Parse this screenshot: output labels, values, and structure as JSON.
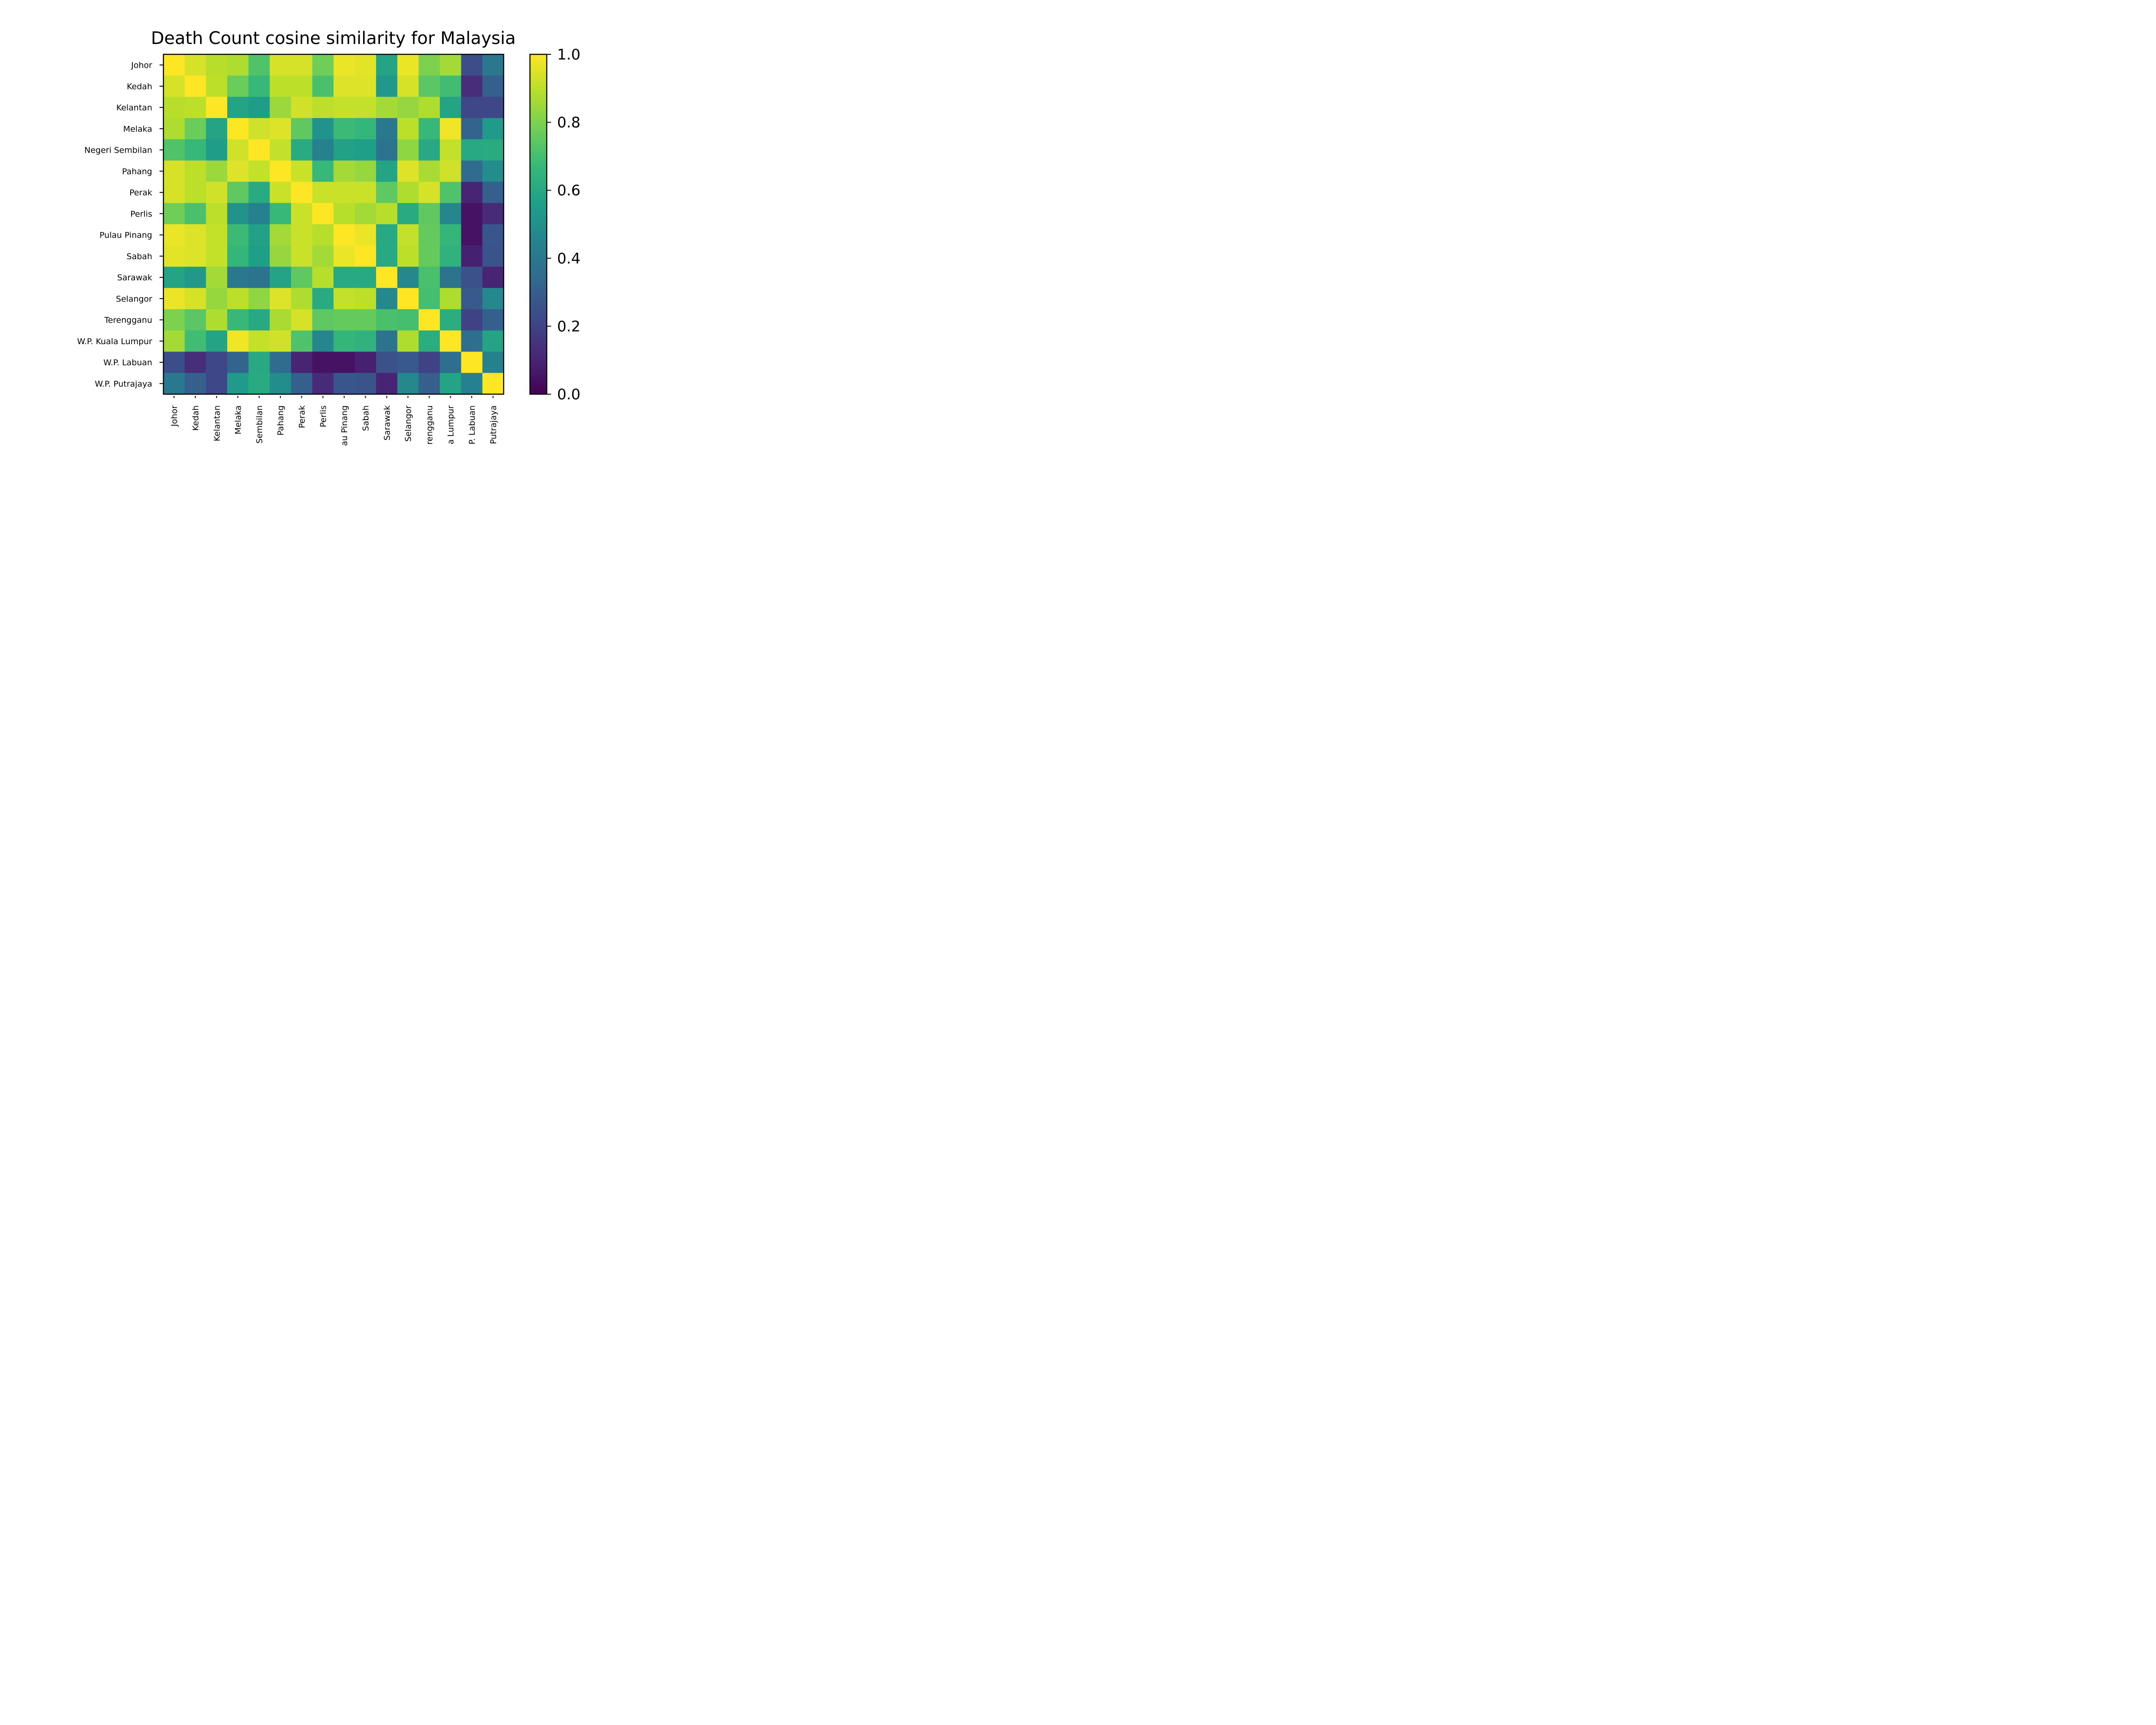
{
  "chart_data": {
    "type": "heatmap",
    "title": "Death Count cosine similarity for Malaysia",
    "xlabel": "",
    "ylabel": "",
    "row_labels": [
      "Johor",
      "Kedah",
      "Kelantan",
      "Melaka",
      "Negeri Sembilan",
      "Pahang",
      "Perak",
      "Perlis",
      "Pulau Pinang",
      "Sabah",
      "Sarawak",
      "Selangor",
      "Terengganu",
      "W.P. Kuala Lumpur",
      "W.P. Labuan",
      "W.P. Putrajaya"
    ],
    "col_tick_labels": [
      "Johor",
      "Kedah",
      "Kelantan",
      "Melaka",
      "Sembilan",
      "Pahang",
      "Perak",
      "Perlis",
      "au Pinang",
      "Sabah",
      "Sarawak",
      "Selangor",
      "rengganu",
      "a Lumpur",
      "P. Labuan",
      "Putrajaya"
    ],
    "values": [
      [
        1.0,
        0.94,
        0.89,
        0.88,
        0.72,
        0.94,
        0.94,
        0.78,
        0.97,
        0.96,
        0.58,
        0.97,
        0.8,
        0.86,
        0.24,
        0.4
      ],
      [
        0.94,
        1.0,
        0.9,
        0.77,
        0.67,
        0.9,
        0.9,
        0.71,
        0.95,
        0.95,
        0.53,
        0.94,
        0.74,
        0.69,
        0.13,
        0.3
      ],
      [
        0.89,
        0.9,
        1.0,
        0.58,
        0.55,
        0.85,
        0.93,
        0.9,
        0.91,
        0.91,
        0.86,
        0.84,
        0.88,
        0.58,
        0.22,
        0.22
      ],
      [
        0.88,
        0.77,
        0.58,
        1.0,
        0.93,
        0.95,
        0.75,
        0.51,
        0.68,
        0.66,
        0.4,
        0.9,
        0.67,
        0.98,
        0.32,
        0.54
      ],
      [
        0.72,
        0.67,
        0.55,
        0.93,
        1.0,
        0.91,
        0.61,
        0.44,
        0.57,
        0.56,
        0.38,
        0.83,
        0.6,
        0.91,
        0.6,
        0.61
      ],
      [
        0.94,
        0.9,
        0.85,
        0.95,
        0.91,
        1.0,
        0.92,
        0.67,
        0.86,
        0.84,
        0.58,
        0.95,
        0.87,
        0.93,
        0.35,
        0.49
      ],
      [
        0.94,
        0.9,
        0.93,
        0.75,
        0.61,
        0.92,
        1.0,
        0.92,
        0.92,
        0.92,
        0.75,
        0.88,
        0.94,
        0.72,
        0.1,
        0.3
      ],
      [
        0.78,
        0.71,
        0.9,
        0.51,
        0.44,
        0.67,
        0.92,
        1.0,
        0.89,
        0.86,
        0.89,
        0.61,
        0.75,
        0.46,
        0.05,
        0.12
      ],
      [
        0.97,
        0.95,
        0.91,
        0.68,
        0.57,
        0.86,
        0.92,
        0.89,
        1.0,
        0.97,
        0.6,
        0.91,
        0.76,
        0.66,
        0.05,
        0.27
      ],
      [
        0.96,
        0.95,
        0.91,
        0.66,
        0.56,
        0.84,
        0.92,
        0.86,
        0.97,
        1.0,
        0.6,
        0.9,
        0.76,
        0.64,
        0.09,
        0.26
      ],
      [
        0.58,
        0.53,
        0.86,
        0.4,
        0.38,
        0.58,
        0.75,
        0.89,
        0.6,
        0.6,
        1.0,
        0.47,
        0.71,
        0.38,
        0.25,
        0.1
      ],
      [
        0.97,
        0.94,
        0.84,
        0.9,
        0.83,
        0.95,
        0.88,
        0.61,
        0.91,
        0.9,
        0.47,
        1.0,
        0.7,
        0.88,
        0.28,
        0.47
      ],
      [
        0.8,
        0.74,
        0.88,
        0.67,
        0.6,
        0.87,
        0.94,
        0.75,
        0.76,
        0.76,
        0.71,
        0.7,
        1.0,
        0.62,
        0.2,
        0.3
      ],
      [
        0.86,
        0.69,
        0.58,
        0.98,
        0.91,
        0.93,
        0.72,
        0.46,
        0.66,
        0.64,
        0.38,
        0.88,
        0.62,
        1.0,
        0.36,
        0.58
      ],
      [
        0.24,
        0.13,
        0.22,
        0.32,
        0.6,
        0.35,
        0.1,
        0.05,
        0.05,
        0.09,
        0.25,
        0.28,
        0.2,
        0.36,
        1.0,
        0.44
      ],
      [
        0.4,
        0.3,
        0.22,
        0.54,
        0.61,
        0.49,
        0.3,
        0.12,
        0.27,
        0.26,
        0.1,
        0.47,
        0.3,
        0.58,
        0.44,
        1.0
      ]
    ],
    "colorbar": {
      "min": 0.0,
      "max": 1.0,
      "ticks": [
        "0.0",
        "0.2",
        "0.4",
        "0.6",
        "0.8",
        "1.0"
      ],
      "colormap": "viridis",
      "colors": [
        "#440154",
        "#482878",
        "#3e4989",
        "#31688e",
        "#26828e",
        "#1f9e89",
        "#35b779",
        "#6ece58",
        "#b5de2b",
        "#fde725"
      ]
    },
    "grid": false
  }
}
